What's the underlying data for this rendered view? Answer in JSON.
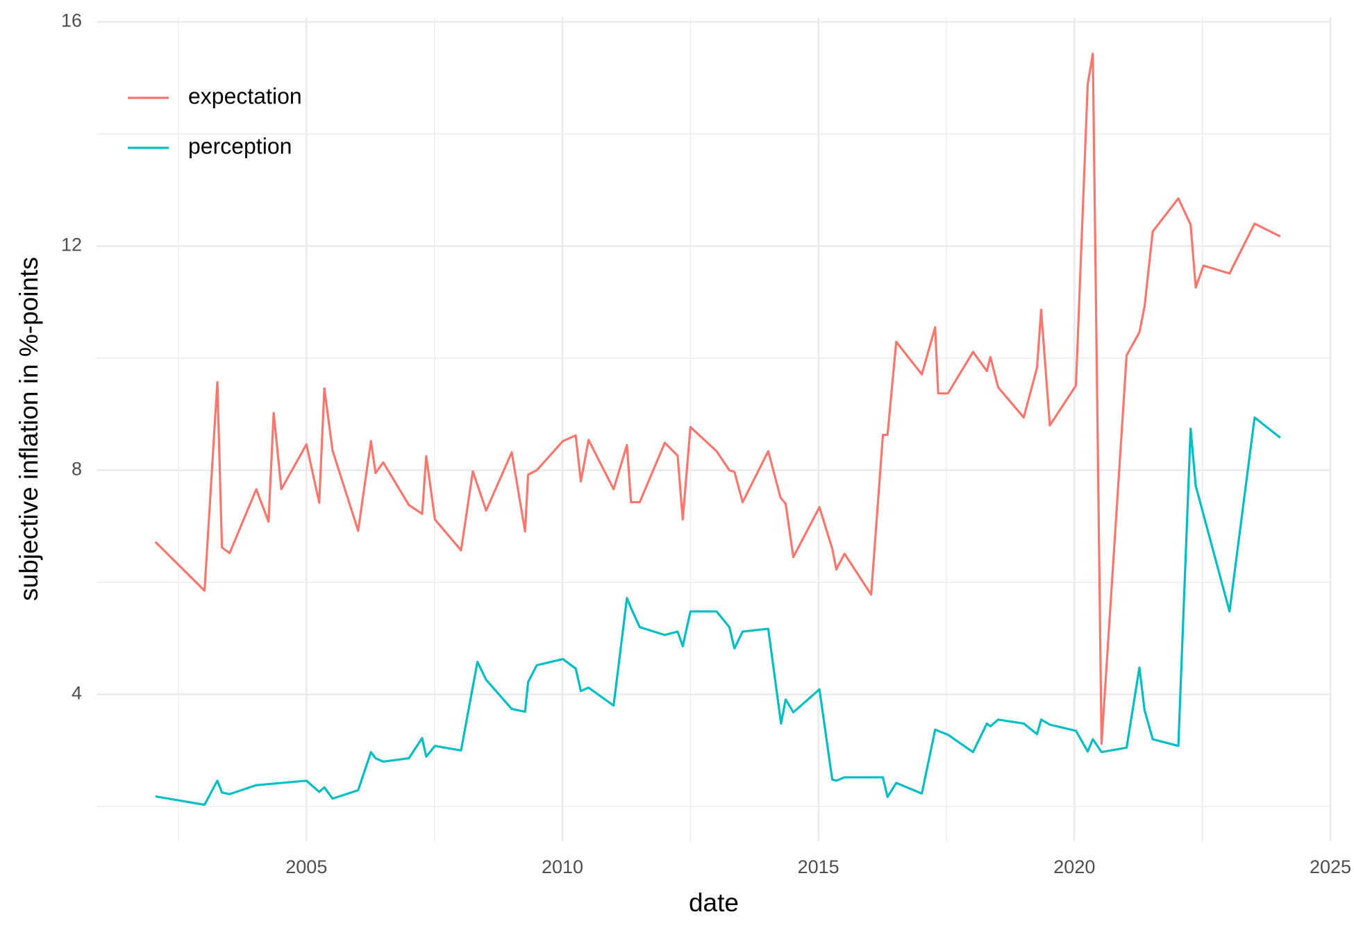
{
  "chart_data": {
    "type": "line",
    "xlabel": "date",
    "ylabel": "subjective inflation in %-points",
    "xlim": [
      2000.9,
      2025.0
    ],
    "ylim": [
      1.38,
      16.08
    ],
    "xticks": [
      2005,
      2010,
      2015,
      2020,
      2025
    ],
    "yticks": [
      4,
      8,
      12,
      16
    ],
    "grid": true,
    "legend": "top-left",
    "series": [
      {
        "name": "expectation",
        "color": "#F8766D",
        "x": [
          2002.05,
          2003.01,
          2003.26,
          2003.35,
          2003.5,
          2004.02,
          2004.26,
          2004.36,
          2004.51,
          2005.0,
          2005.25,
          2005.35,
          2005.51,
          2006.01,
          2006.26,
          2006.35,
          2006.5,
          2007.0,
          2007.26,
          2007.34,
          2007.51,
          2008.02,
          2008.25,
          2008.51,
          2009.01,
          2009.27,
          2009.33,
          2009.5,
          2010.01,
          2010.26,
          2010.36,
          2010.51,
          2011.0,
          2011.26,
          2011.34,
          2011.51,
          2012.0,
          2012.25,
          2012.35,
          2012.5,
          2013.01,
          2013.26,
          2013.36,
          2013.52,
          2014.02,
          2014.26,
          2014.36,
          2014.51,
          2015.02,
          2015.27,
          2015.35,
          2015.51,
          2016.03,
          2016.26,
          2016.35,
          2016.52,
          2017.02,
          2017.28,
          2017.34,
          2017.53,
          2018.02,
          2018.29,
          2018.36,
          2018.51,
          2019.01,
          2019.27,
          2019.35,
          2019.52,
          2020.03,
          2020.26,
          2020.36,
          2020.53,
          2021.02,
          2021.27,
          2021.37,
          2021.53,
          2022.03,
          2022.27,
          2022.37,
          2022.52,
          2023.03,
          2023.52,
          2024.02
        ],
        "values": [
          6.72,
          5.85,
          9.57,
          6.62,
          6.52,
          7.66,
          7.08,
          9.02,
          7.66,
          8.46,
          7.42,
          9.46,
          8.35,
          6.92,
          8.52,
          7.95,
          8.14,
          7.38,
          7.22,
          8.25,
          7.12,
          6.57,
          7.98,
          7.28,
          8.32,
          6.91,
          7.92,
          8.0,
          8.52,
          8.62,
          7.8,
          8.54,
          7.66,
          8.45,
          7.43,
          7.43,
          8.49,
          8.26,
          7.12,
          8.77,
          8.34,
          8.0,
          7.97,
          7.43,
          8.34,
          7.51,
          7.4,
          6.45,
          7.34,
          6.6,
          6.23,
          6.51,
          5.78,
          8.63,
          8.63,
          10.29,
          9.71,
          10.55,
          9.37,
          9.37,
          10.11,
          9.77,
          10.02,
          9.48,
          8.94,
          9.83,
          10.86,
          8.8,
          9.51,
          14.89,
          15.43,
          3.12,
          10.05,
          10.46,
          10.92,
          12.26,
          12.85,
          12.38,
          11.26,
          11.65,
          11.51,
          12.4,
          12.17
        ]
      },
      {
        "name": "perception",
        "color": "#00BFC4",
        "x": [
          2002.05,
          2003.01,
          2003.26,
          2003.35,
          2003.5,
          2004.02,
          2005.0,
          2005.25,
          2005.35,
          2005.51,
          2006.01,
          2006.26,
          2006.35,
          2006.5,
          2007.0,
          2007.26,
          2007.34,
          2007.51,
          2008.02,
          2008.34,
          2008.51,
          2009.01,
          2009.27,
          2009.33,
          2009.5,
          2010.01,
          2010.26,
          2010.36,
          2010.51,
          2011.0,
          2011.26,
          2011.34,
          2011.51,
          2012.0,
          2012.25,
          2012.35,
          2012.5,
          2013.01,
          2013.26,
          2013.36,
          2013.52,
          2014.02,
          2014.27,
          2014.36,
          2014.51,
          2015.02,
          2015.27,
          2015.35,
          2015.51,
          2016.26,
          2016.35,
          2016.52,
          2017.02,
          2017.28,
          2017.53,
          2018.02,
          2018.29,
          2018.36,
          2018.51,
          2019.01,
          2019.27,
          2019.35,
          2019.52,
          2020.03,
          2020.26,
          2020.36,
          2020.53,
          2021.02,
          2021.27,
          2021.37,
          2021.53,
          2022.03,
          2022.27,
          2022.37,
          2023.03,
          2023.52,
          2024.02
        ],
        "values": [
          2.18,
          2.03,
          2.46,
          2.25,
          2.22,
          2.38,
          2.46,
          2.26,
          2.34,
          2.14,
          2.29,
          2.97,
          2.86,
          2.8,
          2.86,
          3.22,
          2.89,
          3.08,
          3.0,
          4.58,
          4.26,
          3.74,
          3.69,
          4.22,
          4.52,
          4.63,
          4.46,
          4.06,
          4.12,
          3.8,
          5.72,
          5.54,
          5.2,
          5.06,
          5.12,
          4.86,
          5.48,
          5.48,
          5.2,
          4.82,
          5.12,
          5.17,
          3.48,
          3.91,
          3.68,
          4.09,
          2.48,
          2.46,
          2.52,
          2.52,
          2.17,
          2.42,
          2.23,
          3.37,
          3.28,
          2.97,
          3.48,
          3.43,
          3.55,
          3.48,
          3.29,
          3.55,
          3.46,
          3.35,
          2.98,
          3.2,
          2.97,
          3.05,
          4.48,
          3.72,
          3.2,
          3.08,
          8.74,
          7.72,
          5.48,
          8.94,
          8.58
        ]
      }
    ]
  }
}
